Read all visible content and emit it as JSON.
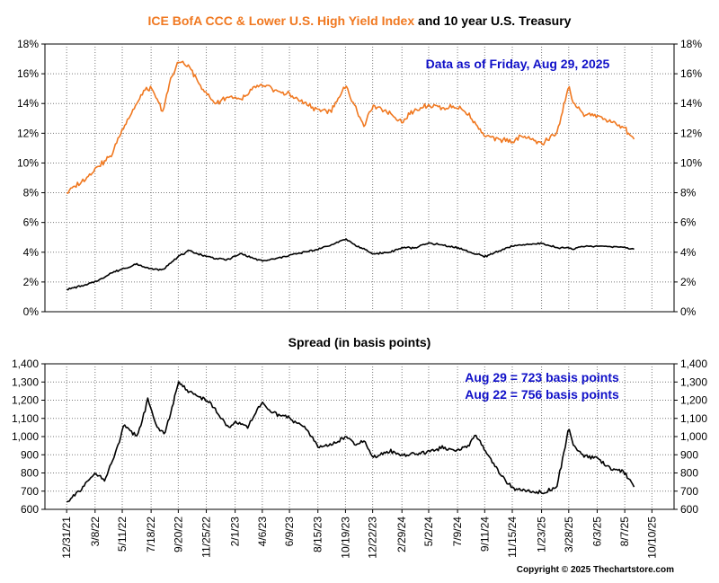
{
  "title": {
    "part1": "ICE BofA CCC & Lower U.S. High Yield Index",
    "part2": " and 10 year U.S. Treasury"
  },
  "colors": {
    "ccc_series": "#f07820",
    "treasury_series": "#000000",
    "spread_series": "#000000",
    "annotation": "#1010c8",
    "title_accent": "#f07820"
  },
  "top_panel": {
    "annotation": "Data as of Friday, Aug 29, 2025"
  },
  "bottom_panel": {
    "title": "Spread (in basis points)",
    "annotation_line1": "Aug 29 = 723 basis points",
    "annotation_line2": "Aug 22 = 756 basis points"
  },
  "copyright": "Copyright © 2025 Thechartstore.com",
  "chart_data": [
    {
      "type": "line",
      "title": "ICE BofA CCC & Lower U.S. High Yield Index and 10 year U.S. Treasury",
      "x_tick_labels": [
        "12/31/21",
        "3/8/22",
        "5/11/22",
        "7/18/22",
        "9/20/22",
        "11/25/22",
        "2/1/23",
        "4/6/23",
        "6/9/23",
        "8/15/23",
        "10/19/23",
        "12/22/23",
        "2/29/24",
        "5/2/24",
        "7/9/24",
        "9/11/24",
        "11/15/24",
        "1/23/25",
        "3/28/25",
        "6/3/25",
        "8/7/25",
        "10/10/25"
      ],
      "y_tick_labels": [
        "0%",
        "2%",
        "4%",
        "6%",
        "8%",
        "10%",
        "12%",
        "14%",
        "16%",
        "18%"
      ],
      "ylim": [
        0,
        18
      ],
      "grid": true,
      "x": [
        "2021-12-31",
        "2022-02-15",
        "2022-03-15",
        "2022-04-15",
        "2022-05-15",
        "2022-06-15",
        "2022-07-01",
        "2022-07-18",
        "2022-08-15",
        "2022-09-01",
        "2022-09-20",
        "2022-10-15",
        "2022-11-15",
        "2022-12-15",
        "2023-01-15",
        "2023-02-15",
        "2023-03-15",
        "2023-04-06",
        "2023-05-15",
        "2023-06-09",
        "2023-07-15",
        "2023-08-15",
        "2023-09-15",
        "2023-10-19",
        "2023-11-15",
        "2023-12-01",
        "2023-12-22",
        "2024-01-31",
        "2024-02-29",
        "2024-03-31",
        "2024-05-02",
        "2024-06-01",
        "2024-07-09",
        "2024-08-07",
        "2024-09-11",
        "2024-10-15",
        "2024-11-15",
        "2024-12-15",
        "2025-01-23",
        "2025-02-28",
        "2025-03-28",
        "2025-04-08",
        "2025-05-01",
        "2025-06-03",
        "2025-07-01",
        "2025-08-07",
        "2025-08-29"
      ],
      "series": [
        {
          "values": [
            8.0,
            9.0,
            9.8,
            10.5,
            12.5,
            14.0,
            14.8,
            15.0,
            13.5,
            15.5,
            16.8,
            16.5,
            15.0,
            14.0,
            14.5,
            14.2,
            15.0,
            15.2,
            14.8,
            14.6,
            14.0,
            13.6,
            13.5,
            15.2,
            13.5,
            12.5,
            13.8,
            13.4,
            12.8,
            13.6,
            13.9,
            13.7,
            13.8,
            13.2,
            11.8,
            11.6,
            11.5,
            11.8,
            11.3,
            12.0,
            15.2,
            14.0,
            13.3,
            13.2,
            12.8,
            12.3,
            11.6
          ]
        },
        {
          "values": [
            1.5,
            1.8,
            2.1,
            2.6,
            2.9,
            3.2,
            3.0,
            2.9,
            2.8,
            3.3,
            3.7,
            4.1,
            3.8,
            3.6,
            3.5,
            3.9,
            3.6,
            3.4,
            3.6,
            3.8,
            4.0,
            4.2,
            4.5,
            4.9,
            4.4,
            4.2,
            3.9,
            4.0,
            4.3,
            4.3,
            4.6,
            4.5,
            4.3,
            4.0,
            3.7,
            4.1,
            4.4,
            4.5,
            4.6,
            4.3,
            4.3,
            4.2,
            4.4,
            4.4,
            4.4,
            4.3,
            4.2
          ]
        }
      ]
    },
    {
      "type": "line",
      "title": "Spread (in basis points)",
      "x_tick_labels": [
        "12/31/21",
        "3/8/22",
        "5/11/22",
        "7/18/22",
        "9/20/22",
        "11/25/22",
        "2/1/23",
        "4/6/23",
        "6/9/23",
        "8/15/23",
        "10/19/23",
        "12/22/23",
        "2/29/24",
        "5/2/24",
        "7/9/24",
        "9/11/24",
        "11/15/24",
        "1/23/25",
        "3/28/25",
        "6/3/25",
        "8/7/25",
        "10/10/25"
      ],
      "y_tick_labels": [
        "600",
        "700",
        "800",
        "900",
        "1,000",
        "1,100",
        "1,200",
        "1,300",
        "1,400"
      ],
      "ylim": [
        600,
        1400
      ],
      "grid": true,
      "x": [
        "2021-12-31",
        "2022-01-31",
        "2022-03-08",
        "2022-04-01",
        "2022-05-01",
        "2022-05-15",
        "2022-06-15",
        "2022-07-10",
        "2022-08-01",
        "2022-08-20",
        "2022-09-20",
        "2022-10-15",
        "2022-11-25",
        "2022-12-15",
        "2023-01-15",
        "2023-02-01",
        "2023-03-01",
        "2023-03-20",
        "2023-04-06",
        "2023-05-01",
        "2023-06-09",
        "2023-07-15",
        "2023-08-15",
        "2023-09-15",
        "2023-10-19",
        "2023-11-15",
        "2023-12-01",
        "2023-12-22",
        "2024-01-31",
        "2024-02-29",
        "2024-04-01",
        "2024-05-02",
        "2024-06-01",
        "2024-07-09",
        "2024-08-05",
        "2024-08-20",
        "2024-09-11",
        "2024-10-15",
        "2024-11-15",
        "2024-12-15",
        "2025-01-23",
        "2025-02-28",
        "2025-03-28",
        "2025-04-08",
        "2025-05-01",
        "2025-06-03",
        "2025-07-01",
        "2025-08-07",
        "2025-08-22",
        "2025-08-29"
      ],
      "series": [
        {
          "values": [
            640,
            700,
            800,
            760,
            950,
            1060,
            1000,
            1200,
            1050,
            1020,
            1290,
            1250,
            1200,
            1150,
            1050,
            1080,
            1050,
            1130,
            1180,
            1130,
            1100,
            1050,
            950,
            950,
            1000,
            950,
            980,
            880,
            920,
            900,
            900,
            920,
            940,
            920,
            950,
            1020,
            920,
            800,
            720,
            700,
            690,
            720,
            1050,
            950,
            900,
            880,
            830,
            800,
            756,
            723
          ]
        }
      ]
    }
  ]
}
